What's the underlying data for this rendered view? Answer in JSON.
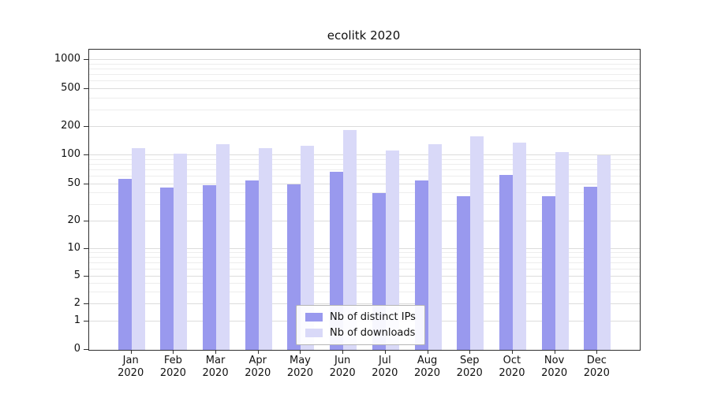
{
  "title": "ecolitk 2020",
  "chart_data": {
    "type": "bar",
    "title": "ecolitk 2020",
    "yscale": "symlog",
    "grid": true,
    "legend_position": "lower center",
    "year": "2020",
    "categories": [
      "Jan",
      "Feb",
      "Mar",
      "Apr",
      "May",
      "Jun",
      "Jul",
      "Aug",
      "Sep",
      "Oct",
      "Nov",
      "Dec"
    ],
    "yticks": [
      0,
      1,
      2,
      5,
      10,
      20,
      50,
      100,
      200,
      500,
      1000
    ],
    "ylim": [
      0,
      1300
    ],
    "series": [
      {
        "name": "Nb of distinct IPs",
        "color": "#9999ee",
        "values": [
          57,
          46,
          49,
          55,
          50,
          67,
          40,
          55,
          37,
          63,
          37,
          47
        ]
      },
      {
        "name": "Nb of downloads",
        "color": "#d9d9f8",
        "values": [
          120,
          105,
          132,
          120,
          127,
          185,
          112,
          132,
          160,
          137,
          108,
          100
        ]
      }
    ]
  }
}
